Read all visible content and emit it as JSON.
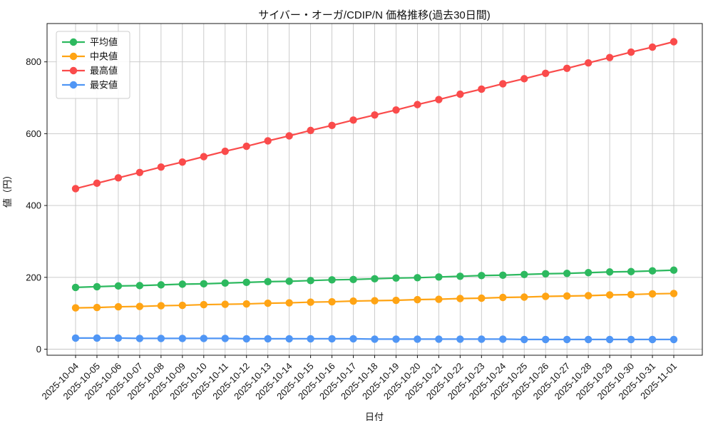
{
  "chart_data": {
    "type": "line",
    "title": "サイバー・オーガ/CDIP/N 価格推移(過去30日間)",
    "xlabel": "日付",
    "ylabel": "値（円）",
    "x": [
      "2025-10-04",
      "2025-10-05",
      "2025-10-06",
      "2025-10-07",
      "2025-10-08",
      "2025-10-09",
      "2025-10-10",
      "2025-10-11",
      "2025-10-12",
      "2025-10-13",
      "2025-10-14",
      "2025-10-15",
      "2025-10-16",
      "2025-10-17",
      "2025-10-18",
      "2025-10-19",
      "2025-10-20",
      "2025-10-21",
      "2025-10-22",
      "2025-10-23",
      "2025-10-24",
      "2025-10-25",
      "2025-10-26",
      "2025-10-27",
      "2025-10-28",
      "2025-10-29",
      "2025-10-30",
      "2025-10-31",
      "2025-11-01"
    ],
    "series": [
      {
        "name": "平均値",
        "color": "#2db95f",
        "values": [
          172,
          174,
          176,
          177,
          179,
          181,
          182,
          184,
          186,
          188,
          189,
          191,
          193,
          194,
          196,
          198,
          199,
          201,
          203,
          205,
          206,
          208,
          210,
          211,
          213,
          215,
          216,
          218,
          220
        ]
      },
      {
        "name": "中央値",
        "color": "#ffa414",
        "values": [
          115,
          116,
          118,
          119,
          121,
          122,
          124,
          125,
          126,
          128,
          129,
          131,
          132,
          134,
          135,
          136,
          138,
          139,
          141,
          142,
          144,
          145,
          147,
          148,
          149,
          151,
          152,
          154,
          155
        ]
      },
      {
        "name": "最高値",
        "color": "#fa4b4b",
        "values": [
          447,
          462,
          477,
          492,
          507,
          521,
          536,
          551,
          565,
          580,
          594,
          609,
          623,
          638,
          652,
          666,
          681,
          695,
          710,
          724,
          739,
          753,
          768,
          782,
          797,
          812,
          827,
          841,
          856
        ]
      },
      {
        "name": "最安値",
        "color": "#5096f5",
        "values": [
          31,
          31,
          31,
          30,
          30,
          30,
          30,
          30,
          29,
          29,
          29,
          29,
          29,
          29,
          28,
          28,
          28,
          28,
          28,
          28,
          28,
          27,
          27,
          27,
          27,
          27,
          27,
          27,
          27
        ]
      }
    ],
    "yticks": [
      "0",
      "200",
      "400",
      "600",
      "800"
    ],
    "ylim": [
      -17,
      906
    ],
    "grid": true,
    "grid_color": "#c6c6c6",
    "legend_position": "upper-left",
    "background": "#ffffff"
  }
}
